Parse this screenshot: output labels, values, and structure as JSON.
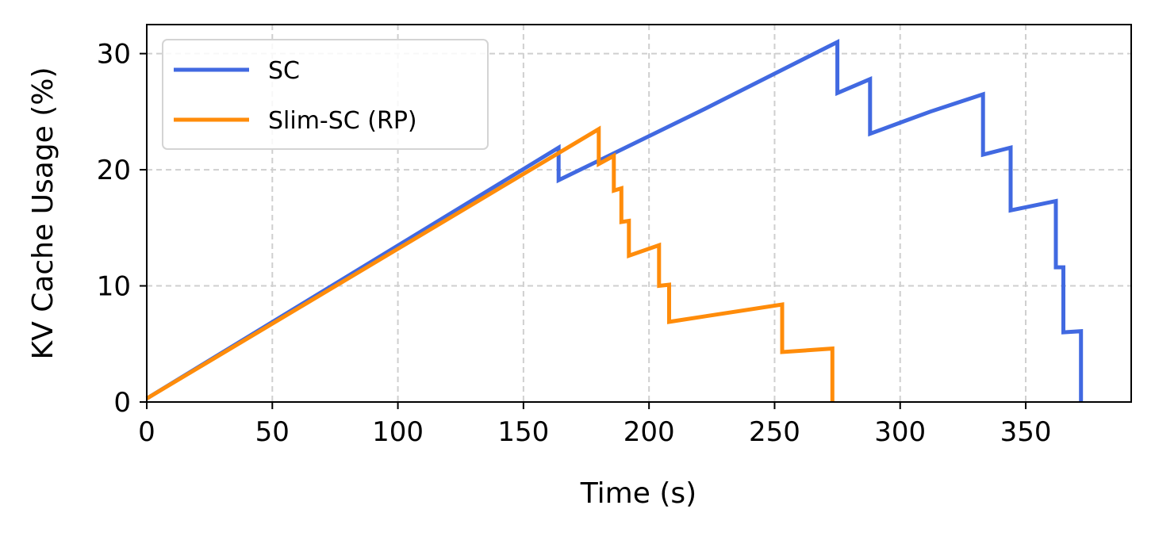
{
  "chart_data": {
    "type": "line",
    "xlabel": "Time (s)",
    "ylabel": "KV Cache Usage (%)",
    "xlim": [
      0,
      392
    ],
    "ylim": [
      0,
      32.5
    ],
    "xticks": [
      0,
      50,
      100,
      150,
      200,
      250,
      300,
      350
    ],
    "yticks": [
      0,
      10,
      20,
      30
    ],
    "grid": true,
    "legend_position": "upper-left",
    "series": [
      {
        "name": "SC",
        "color": "#4169e1",
        "x": [
          0,
          164,
          164,
          220,
          275,
          275,
          288,
          288,
          312,
          333,
          333,
          344,
          344,
          362,
          362,
          365,
          365,
          372,
          372
        ],
        "y": [
          0.3,
          21.9,
          19.1,
          25.0,
          31.0,
          26.6,
          27.8,
          23.1,
          25.0,
          26.5,
          21.3,
          21.9,
          16.5,
          17.3,
          11.6,
          11.6,
          6.0,
          6.1,
          0
        ]
      },
      {
        "name": "Slim-SC (RP)",
        "color": "#ff8c0a",
        "x": [
          0,
          180,
          180,
          186,
          186,
          189,
          189,
          192,
          192,
          204,
          204,
          208,
          208,
          253,
          253,
          273,
          273
        ],
        "y": [
          0.3,
          23.5,
          20.5,
          21.2,
          18.2,
          18.4,
          15.5,
          15.6,
          12.6,
          13.5,
          10.0,
          10.1,
          6.9,
          8.4,
          4.3,
          4.6,
          0
        ]
      }
    ]
  }
}
